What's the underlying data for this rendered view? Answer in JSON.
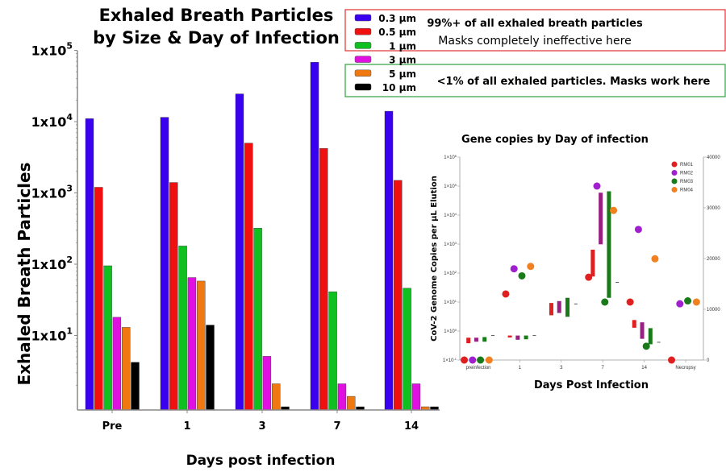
{
  "chart_data": [
    {
      "type": "bar",
      "title": [
        "Exhaled Breath Particles",
        "by Size & Day of Infection"
      ],
      "xlabel": "Days post infection",
      "ylabel": "Exhaled Breath Particles",
      "yscale": "log",
      "ylim": [
        1,
        100000
      ],
      "yticks": [
        {
          "base": "1x10",
          "exp": "5",
          "value": 100000
        },
        {
          "base": "1x10",
          "exp": "4",
          "value": 10000
        },
        {
          "base": "1x10",
          "exp": "3",
          "value": 1000
        },
        {
          "base": "1x10",
          "exp": "2",
          "value": 100
        },
        {
          "base": "1x10",
          "exp": "1",
          "value": 10
        }
      ],
      "categories": [
        "Pre",
        "1",
        "3",
        "7",
        "14"
      ],
      "series": [
        {
          "name": "0.3 µm",
          "color": "#3a00f0",
          "values": [
            11000,
            11500,
            24500,
            68000,
            14000
          ]
        },
        {
          "name": "0.5 µm",
          "color": "#f01010",
          "values": [
            1200,
            1400,
            5000,
            4200,
            1500
          ]
        },
        {
          "name": "1 µm",
          "color": "#10c020",
          "values": [
            95,
            180,
            320,
            41,
            46
          ]
        },
        {
          "name": "3 µm",
          "color": "#e010e0",
          "values": [
            18,
            65,
            5.1,
            2.1,
            2.1
          ]
        },
        {
          "name": "5 µm",
          "color": "#f07810",
          "values": [
            13,
            58,
            2.1,
            1.4,
            1
          ]
        },
        {
          "name": "10 µm",
          "color": "#000000",
          "values": [
            4.2,
            14,
            1,
            1,
            1
          ]
        }
      ],
      "legend": {
        "placement": "top-right",
        "group_notes": [
          {
            "bold": "99%+ of all exhaled breath particles",
            "normal": "Masks completely ineffective here",
            "border": "#e03030"
          },
          {
            "bold": "<1% of all exhaled particles. Masks work here",
            "border": "#30a040"
          }
        ]
      }
    },
    {
      "type": "scatter",
      "title": "Gene copies by Day of infection",
      "xlabel": "Days Post Infection",
      "ylabel": "CoV-2 Genome Copies per µL Elution",
      "yscale": "log",
      "ylim": [
        0.1,
        1000000
      ],
      "yticks": [
        {
          "base": "1×10",
          "exp": "6"
        },
        {
          "base": "1×10",
          "exp": "5"
        },
        {
          "base": "1×10",
          "exp": "4"
        },
        {
          "base": "1×10",
          "exp": "3"
        },
        {
          "base": "1×10",
          "exp": "2"
        },
        {
          "base": "1×10",
          "exp": "1"
        },
        {
          "base": "1×10",
          "exp": "0"
        },
        {
          "base": "1×10",
          "exp": "-1"
        }
      ],
      "y2ticks": [
        "40000",
        "30000",
        "20000",
        "10000",
        "0"
      ],
      "y2lim": [
        0,
        40000
      ],
      "categories": [
        "preinfection",
        "1",
        "3",
        "7",
        "14",
        "Necropsy"
      ],
      "series": [
        {
          "name": "RM01",
          "color": "#e02020",
          "points": [
            [
              0,
              0.1
            ],
            [
              1,
              19
            ],
            [
              3,
              72
            ],
            [
              4,
              10
            ],
            [
              5,
              0.1
            ]
          ]
        },
        {
          "name": "RM02",
          "color": "#a020d0",
          "points": [
            [
              0,
              0.1
            ],
            [
              1,
              140
            ],
            [
              3,
              100000
            ],
            [
              4,
              3200
            ],
            [
              5,
              8.7
            ]
          ]
        },
        {
          "name": "RM03",
          "color": "#1a7a1a",
          "points": [
            [
              0,
              0.1
            ],
            [
              1,
              80
            ],
            [
              3,
              10
            ],
            [
              4,
              0.3
            ],
            [
              5,
              11
            ]
          ]
        },
        {
          "name": "RM04",
          "color": "#f08020",
          "points": [
            [
              0,
              0.1
            ],
            [
              1,
              170
            ],
            [
              3,
              14500
            ],
            [
              4,
              310
            ],
            [
              5,
              10
            ]
          ]
        }
      ],
      "boxes": [
        {
          "cat": 0,
          "slot": 0,
          "low": 0.38,
          "high": 0.59,
          "color": "#e02020"
        },
        {
          "cat": 0,
          "slot": 1,
          "low": 0.43,
          "high": 0.59,
          "color": "#992080"
        },
        {
          "cat": 0,
          "slot": 2,
          "low": 0.43,
          "high": 0.62,
          "color": "#1a7a1a"
        },
        {
          "cat": 0,
          "slot": 3,
          "low": 0.7,
          "high": 0.7,
          "color": "#555555"
        },
        {
          "cat": 1,
          "slot": 0,
          "low": 0.6,
          "high": 0.7,
          "color": "#e02020"
        },
        {
          "cat": 1,
          "slot": 1,
          "low": 0.5,
          "high": 0.7,
          "color": "#992080"
        },
        {
          "cat": 1,
          "slot": 2,
          "low": 0.52,
          "high": 0.7,
          "color": "#1a7a1a"
        },
        {
          "cat": 1,
          "slot": 3,
          "low": 0.7,
          "high": 0.7,
          "color": "#555555"
        },
        {
          "cat": 2,
          "slot": 0,
          "low": 3.5,
          "high": 9.3,
          "color": "#e02020"
        },
        {
          "cat": 2,
          "slot": 1,
          "low": 4.2,
          "high": 10.8,
          "color": "#992080"
        },
        {
          "cat": 2,
          "slot": 2,
          "low": 3.1,
          "high": 14,
          "color": "#1a7a1a"
        },
        {
          "cat": 2,
          "slot": 3,
          "low": 8.6,
          "high": 8.6,
          "color": "#555555"
        },
        {
          "cat": 3,
          "slot": 0,
          "low": 76,
          "high": 640,
          "color": "#e02020"
        },
        {
          "cat": 3,
          "slot": 1,
          "low": 980,
          "high": 59000,
          "color": "#992080"
        },
        {
          "cat": 3,
          "slot": 2,
          "low": 14,
          "high": 66000,
          "color": "#1a7a1a"
        },
        {
          "cat": 3,
          "slot": 3,
          "low": 48,
          "high": 48,
          "color": "#555555"
        },
        {
          "cat": 4,
          "slot": 0,
          "low": 1.3,
          "high": 2.4,
          "color": "#e02020"
        },
        {
          "cat": 4,
          "slot": 1,
          "low": 0.54,
          "high": 2.0,
          "color": "#992080"
        },
        {
          "cat": 4,
          "slot": 2,
          "low": 0.35,
          "high": 1.26,
          "color": "#1a7a1a"
        },
        {
          "cat": 4,
          "slot": 3,
          "low": 0.41,
          "high": 0.41,
          "color": "#555555"
        }
      ]
    }
  ]
}
